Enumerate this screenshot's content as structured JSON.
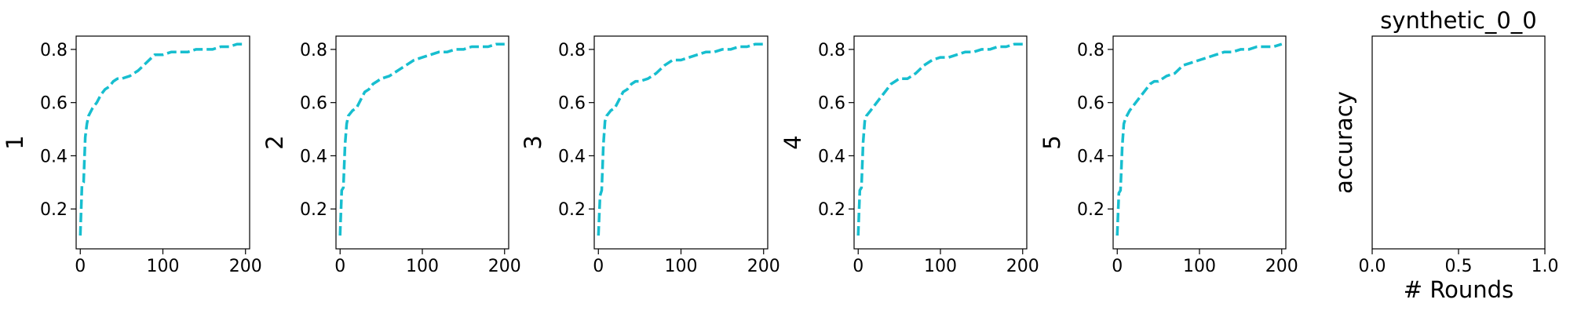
{
  "figure": {
    "background": "#ffffff",
    "line_color": "#17becf",
    "axis_color": "#000000"
  },
  "chart_data": [
    {
      "type": "line",
      "title": "",
      "xlabel": "",
      "ylabel": "1",
      "xlim": [
        -5,
        205
      ],
      "ylim": [
        0.05,
        0.85
      ],
      "xticks": [
        0,
        100,
        200
      ],
      "yticks": [
        0.2,
        0.4,
        0.6,
        0.8
      ],
      "xtick_labels": [
        "0",
        "100",
        "200"
      ],
      "ytick_labels": [
        "0.2",
        "0.4",
        "0.6",
        "0.8"
      ],
      "grid": false,
      "series": [
        {
          "style": "dashed",
          "x": [
            0,
            2,
            4,
            6,
            8,
            10,
            15,
            20,
            25,
            30,
            35,
            40,
            45,
            50,
            60,
            70,
            80,
            90,
            100,
            110,
            120,
            130,
            140,
            150,
            160,
            170,
            180,
            190,
            200
          ],
          "y": [
            0.1,
            0.29,
            0.3,
            0.47,
            0.52,
            0.55,
            0.58,
            0.6,
            0.63,
            0.65,
            0.66,
            0.68,
            0.69,
            0.69,
            0.7,
            0.72,
            0.75,
            0.78,
            0.78,
            0.79,
            0.79,
            0.79,
            0.8,
            0.8,
            0.8,
            0.81,
            0.81,
            0.82,
            0.82
          ]
        }
      ]
    },
    {
      "type": "line",
      "title": "",
      "xlabel": "",
      "ylabel": "2",
      "xlim": [
        -5,
        205
      ],
      "ylim": [
        0.05,
        0.85
      ],
      "xticks": [
        0,
        100,
        200
      ],
      "yticks": [
        0.2,
        0.4,
        0.6,
        0.8
      ],
      "xtick_labels": [
        "0",
        "100",
        "200"
      ],
      "ytick_labels": [
        "0.2",
        "0.4",
        "0.6",
        "0.8"
      ],
      "grid": false,
      "series": [
        {
          "style": "dashed",
          "x": [
            0,
            2,
            4,
            6,
            8,
            10,
            15,
            20,
            25,
            30,
            35,
            40,
            45,
            50,
            60,
            70,
            80,
            90,
            100,
            110,
            120,
            130,
            140,
            150,
            160,
            170,
            180,
            190,
            200
          ],
          "y": [
            0.1,
            0.27,
            0.28,
            0.44,
            0.52,
            0.55,
            0.57,
            0.58,
            0.61,
            0.64,
            0.65,
            0.67,
            0.68,
            0.69,
            0.7,
            0.72,
            0.74,
            0.76,
            0.77,
            0.78,
            0.79,
            0.79,
            0.8,
            0.8,
            0.81,
            0.81,
            0.81,
            0.82,
            0.82
          ]
        }
      ]
    },
    {
      "type": "line",
      "title": "",
      "xlabel": "",
      "ylabel": "3",
      "xlim": [
        -5,
        205
      ],
      "ylim": [
        0.05,
        0.85
      ],
      "xticks": [
        0,
        100,
        200
      ],
      "yticks": [
        0.2,
        0.4,
        0.6,
        0.8
      ],
      "xtick_labels": [
        "0",
        "100",
        "200"
      ],
      "ytick_labels": [
        "0.2",
        "0.4",
        "0.6",
        "0.8"
      ],
      "grid": false,
      "series": [
        {
          "style": "dashed",
          "x": [
            0,
            2,
            4,
            6,
            8,
            10,
            15,
            20,
            25,
            30,
            35,
            40,
            45,
            50,
            60,
            70,
            80,
            90,
            100,
            110,
            120,
            130,
            140,
            150,
            160,
            170,
            180,
            190,
            200
          ],
          "y": [
            0.1,
            0.25,
            0.27,
            0.44,
            0.53,
            0.55,
            0.57,
            0.58,
            0.61,
            0.64,
            0.65,
            0.67,
            0.68,
            0.68,
            0.69,
            0.71,
            0.74,
            0.76,
            0.76,
            0.77,
            0.78,
            0.79,
            0.79,
            0.8,
            0.8,
            0.81,
            0.81,
            0.82,
            0.82
          ]
        }
      ]
    },
    {
      "type": "line",
      "title": "",
      "xlabel": "",
      "ylabel": "4",
      "xlim": [
        -5,
        205
      ],
      "ylim": [
        0.05,
        0.85
      ],
      "xticks": [
        0,
        100,
        200
      ],
      "yticks": [
        0.2,
        0.4,
        0.6,
        0.8
      ],
      "xtick_labels": [
        "0",
        "100",
        "200"
      ],
      "ytick_labels": [
        "0.2",
        "0.4",
        "0.6",
        "0.8"
      ],
      "grid": false,
      "series": [
        {
          "style": "dashed",
          "x": [
            0,
            2,
            4,
            6,
            8,
            10,
            15,
            20,
            25,
            30,
            35,
            40,
            45,
            50,
            60,
            70,
            80,
            90,
            100,
            110,
            120,
            130,
            140,
            150,
            160,
            170,
            180,
            190,
            200
          ],
          "y": [
            0.1,
            0.27,
            0.28,
            0.45,
            0.53,
            0.55,
            0.57,
            0.59,
            0.61,
            0.63,
            0.65,
            0.67,
            0.68,
            0.69,
            0.69,
            0.71,
            0.74,
            0.76,
            0.77,
            0.77,
            0.78,
            0.79,
            0.79,
            0.8,
            0.8,
            0.81,
            0.81,
            0.82,
            0.82
          ]
        }
      ]
    },
    {
      "type": "line",
      "title": "",
      "xlabel": "",
      "ylabel": "5",
      "xlim": [
        -5,
        205
      ],
      "ylim": [
        0.05,
        0.85
      ],
      "xticks": [
        0,
        100,
        200
      ],
      "yticks": [
        0.2,
        0.4,
        0.6,
        0.8
      ],
      "xtick_labels": [
        "0",
        "100",
        "200"
      ],
      "ytick_labels": [
        "0.2",
        "0.4",
        "0.6",
        "0.8"
      ],
      "grid": false,
      "series": [
        {
          "style": "dashed",
          "x": [
            0,
            2,
            4,
            6,
            8,
            10,
            15,
            20,
            25,
            30,
            35,
            40,
            45,
            50,
            60,
            70,
            80,
            90,
            100,
            110,
            120,
            130,
            140,
            150,
            160,
            170,
            180,
            190,
            200
          ],
          "y": [
            0.1,
            0.26,
            0.27,
            0.43,
            0.52,
            0.54,
            0.57,
            0.59,
            0.61,
            0.63,
            0.65,
            0.67,
            0.68,
            0.68,
            0.7,
            0.71,
            0.74,
            0.75,
            0.76,
            0.77,
            0.78,
            0.79,
            0.79,
            0.8,
            0.8,
            0.81,
            0.81,
            0.81,
            0.82
          ]
        }
      ]
    },
    {
      "type": "line",
      "title": "synthetic_0_0",
      "xlabel": "# Rounds",
      "ylabel": "accuracy",
      "xlim": [
        0,
        1
      ],
      "ylim": [
        0,
        1
      ],
      "xticks": [
        0,
        0.5,
        1
      ],
      "yticks": [],
      "xtick_labels": [
        "0.0",
        "0.5",
        "1.0"
      ],
      "ytick_labels": [],
      "grid": false,
      "series": []
    }
  ]
}
